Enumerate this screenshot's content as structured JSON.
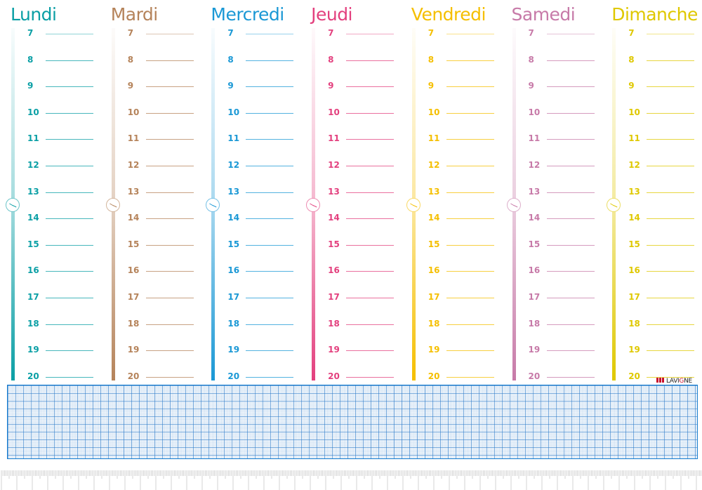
{
  "planner": {
    "hours": [
      "7",
      "8",
      "9",
      "10",
      "11",
      "12",
      "13",
      "14",
      "15",
      "16",
      "17",
      "18",
      "19",
      "20"
    ],
    "days": [
      {
        "name": "Lundi",
        "color": "#0a9fa5"
      },
      {
        "name": "Mardi",
        "color": "#b5835a"
      },
      {
        "name": "Mercredi",
        "color": "#1a98d5"
      },
      {
        "name": "Jeudi",
        "color": "#e3407e"
      },
      {
        "name": "Vendredi",
        "color": "#f5bf00"
      },
      {
        "name": "Samedi",
        "color": "#c77aa8"
      },
      {
        "name": "Dimanche",
        "color": "#dfc800"
      }
    ],
    "clock_icon": "clock-icon"
  },
  "logo": {
    "text_pre": "LAVI",
    "text_g": "G",
    "text_post": "NE"
  },
  "grid_color": "#1a7fd0"
}
